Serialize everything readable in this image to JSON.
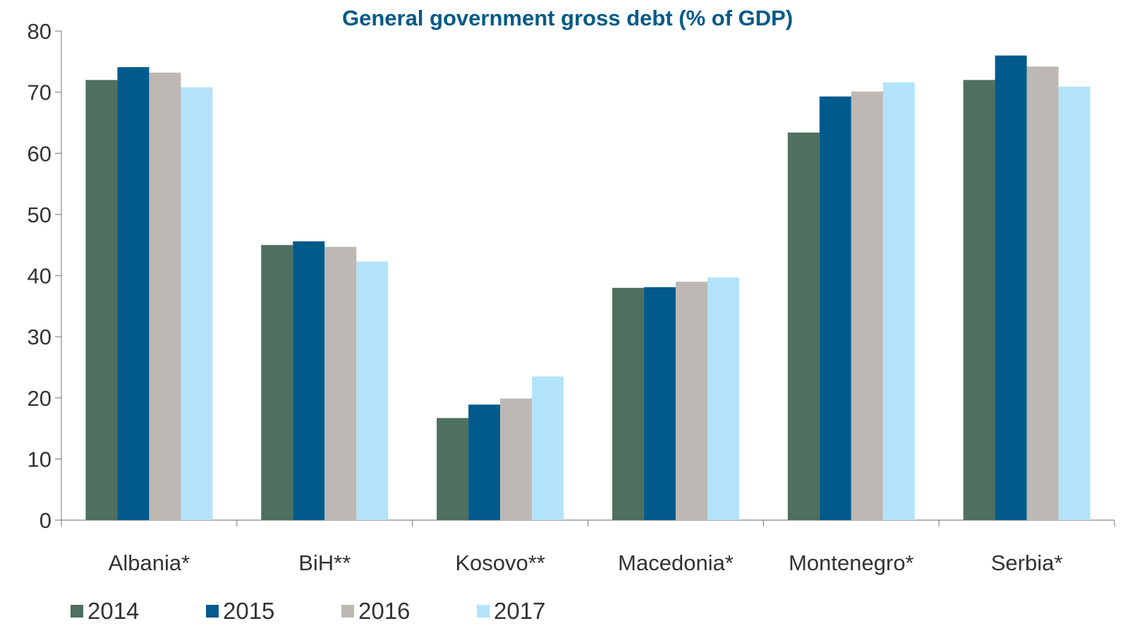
{
  "chart_data": {
    "type": "bar",
    "title": "General government gross debt (% of GDP)",
    "xlabel": "",
    "ylabel": "",
    "ylim": [
      0,
      80
    ],
    "yticks": [
      0,
      10,
      20,
      30,
      40,
      50,
      60,
      70,
      80
    ],
    "categories": [
      "Albania*",
      "BiH**",
      "Kosovo**",
      "Macedonia*",
      "Montenegro*",
      "Serbia*"
    ],
    "series": [
      {
        "name": "2014",
        "color": "#4F6F5F",
        "values": [
          72.0,
          45.0,
          16.7,
          38.0,
          63.4,
          72.0
        ]
      },
      {
        "name": "2015",
        "color": "#005A8C",
        "values": [
          74.1,
          45.6,
          18.9,
          38.1,
          69.3,
          76.0
        ]
      },
      {
        "name": "2016",
        "color": "#BDB8B3",
        "values": [
          73.2,
          44.7,
          19.9,
          39.0,
          70.1,
          74.2
        ]
      },
      {
        "name": "2017",
        "color": "#B3E3FA",
        "values": [
          70.8,
          42.3,
          23.5,
          39.7,
          71.6,
          70.9
        ]
      }
    ],
    "grid": false,
    "legend_position": "bottom-left"
  }
}
